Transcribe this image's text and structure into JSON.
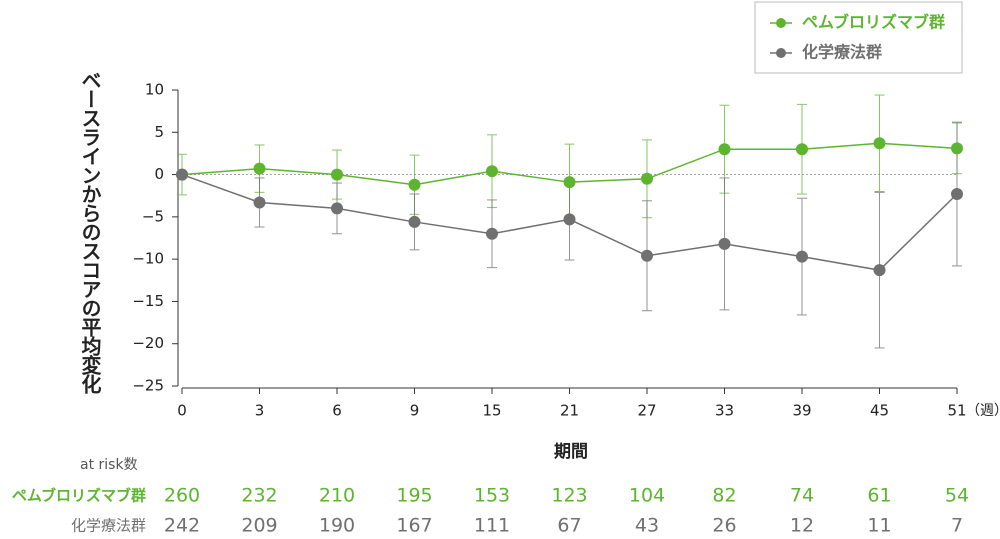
{
  "chart_data": {
    "type": "line",
    "y_label": "ベースラインからのスコアの平均変化",
    "x_label": "期間",
    "x_unit": "（週）",
    "categories": [
      "0",
      "3",
      "6",
      "9",
      "15",
      "21",
      "27",
      "33",
      "39",
      "45",
      "51"
    ],
    "ylim": [
      -25,
      10
    ],
    "yticks": [
      10,
      5,
      0,
      {
        "value": -5,
        "label": "−5"
      },
      {
        "value": -10,
        "label": "−10"
      },
      {
        "value": -15,
        "label": "−15"
      },
      {
        "value": -20,
        "label": "−20"
      },
      {
        "value": -25,
        "label": "−25"
      }
    ],
    "series": [
      {
        "name": "ペムブロリズマブ群",
        "color": "#5db52f",
        "values": [
          0,
          0.7,
          0,
          -1.2,
          0.4,
          -0.9,
          -0.5,
          3.0,
          3.0,
          3.7,
          3.1
        ],
        "errors": [
          2.4,
          2.8,
          2.9,
          3.5,
          4.3,
          4.5,
          4.6,
          5.2,
          5.3,
          5.7,
          3.0
        ]
      },
      {
        "name": "化学療法群",
        "color": "#707070",
        "values": [
          0,
          -3.3,
          -4.0,
          -5.6,
          -7.0,
          -5.3,
          -9.6,
          -8.2,
          -9.7,
          -11.3,
          -2.3
        ],
        "errors": [
          0,
          2.9,
          3.0,
          3.3,
          4.0,
          4.8,
          6.5,
          7.8,
          6.9,
          9.2,
          8.5
        ]
      }
    ],
    "risk_table": {
      "title": "at risk数",
      "rows": [
        [
          260,
          232,
          210,
          195,
          153,
          123,
          104,
          82,
          74,
          61,
          54
        ],
        [
          242,
          209,
          190,
          167,
          111,
          67,
          43,
          26,
          12,
          11,
          7
        ]
      ]
    }
  }
}
